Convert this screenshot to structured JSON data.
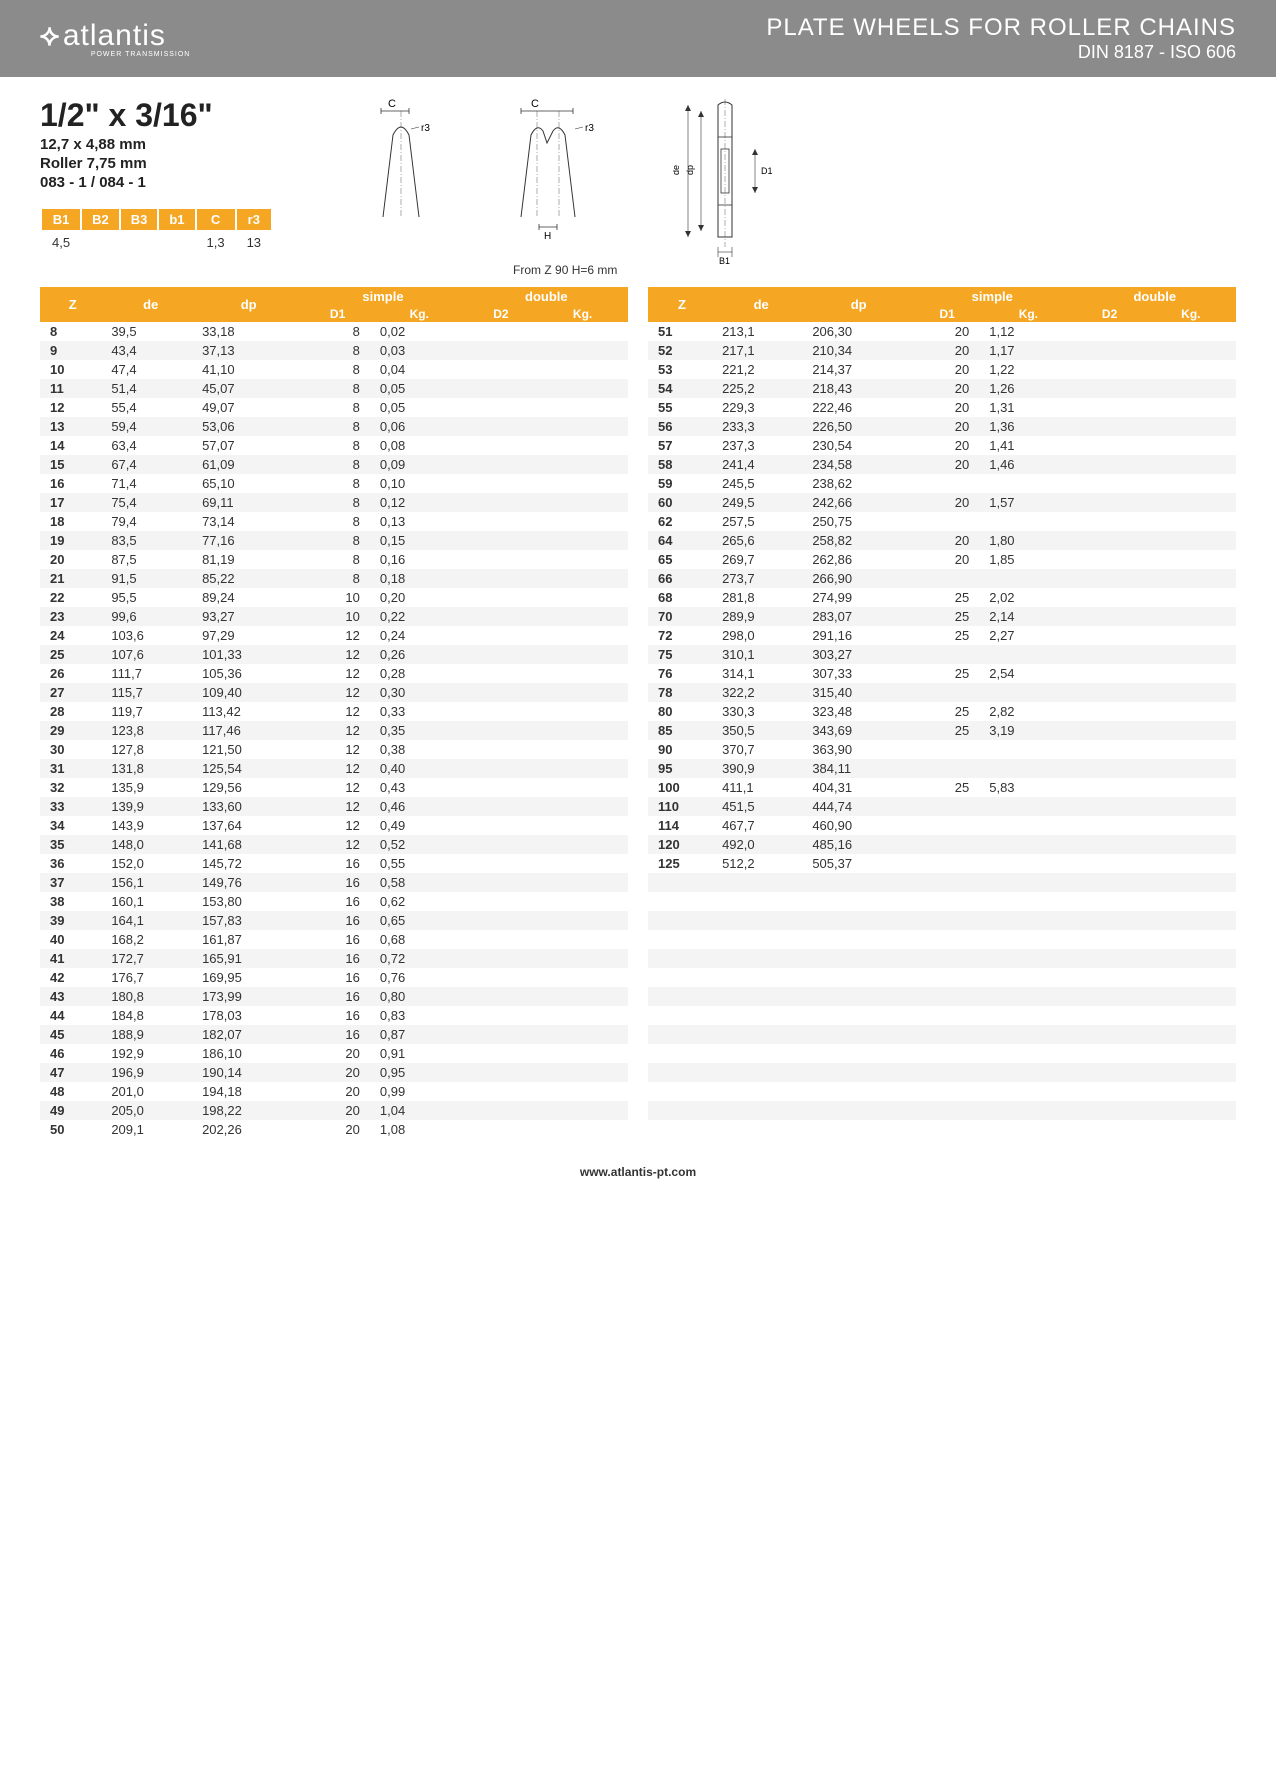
{
  "header": {
    "logo_text": "atlantis",
    "logo_sub": "POWER TRANSMISSION",
    "title_main": "PLATE WHEELS FOR ROLLER CHAINS",
    "title_sub": "DIN 8187 - ISO 606"
  },
  "spec": {
    "size": "1/2\" x 3/16\"",
    "mm": "12,7 x 4,88 mm",
    "roller": "Roller 7,75 mm",
    "code": "083 - 1 / 084 - 1"
  },
  "note": "From Z 90 H=6 mm",
  "small_table": {
    "headers": [
      "B1",
      "B2",
      "B3",
      "b1",
      "C",
      "r3"
    ],
    "values": [
      "4,5",
      "",
      "",
      "",
      "1,3",
      "13"
    ]
  },
  "diagram_labels": {
    "C": "C",
    "r3": "r3",
    "H": "H",
    "de": "de",
    "dp": "dp",
    "D1": "D1",
    "B1": "B1"
  },
  "table_headers": {
    "Z": "Z",
    "de": "de",
    "dp": "dp",
    "simple": "simple",
    "double": "double",
    "D1": "D1",
    "Kg": "Kg.",
    "D2": "D2",
    "Kg2": "Kg."
  },
  "colors": {
    "header_bg": "#8b8b8b",
    "accent": "#f5a623",
    "row_alt": "#f4f4f4",
    "text": "#333333"
  },
  "left_rows": [
    {
      "z": "8",
      "de": "39,5",
      "dp": "33,18",
      "d1": "8",
      "kg": "0,02"
    },
    {
      "z": "9",
      "de": "43,4",
      "dp": "37,13",
      "d1": "8",
      "kg": "0,03"
    },
    {
      "z": "10",
      "de": "47,4",
      "dp": "41,10",
      "d1": "8",
      "kg": "0,04"
    },
    {
      "z": "11",
      "de": "51,4",
      "dp": "45,07",
      "d1": "8",
      "kg": "0,05"
    },
    {
      "z": "12",
      "de": "55,4",
      "dp": "49,07",
      "d1": "8",
      "kg": "0,05"
    },
    {
      "z": "13",
      "de": "59,4",
      "dp": "53,06",
      "d1": "8",
      "kg": "0,06"
    },
    {
      "z": "14",
      "de": "63,4",
      "dp": "57,07",
      "d1": "8",
      "kg": "0,08"
    },
    {
      "z": "15",
      "de": "67,4",
      "dp": "61,09",
      "d1": "8",
      "kg": "0,09"
    },
    {
      "z": "16",
      "de": "71,4",
      "dp": "65,10",
      "d1": "8",
      "kg": "0,10"
    },
    {
      "z": "17",
      "de": "75,4",
      "dp": "69,11",
      "d1": "8",
      "kg": "0,12"
    },
    {
      "z": "18",
      "de": "79,4",
      "dp": "73,14",
      "d1": "8",
      "kg": "0,13"
    },
    {
      "z": "19",
      "de": "83,5",
      "dp": "77,16",
      "d1": "8",
      "kg": "0,15"
    },
    {
      "z": "20",
      "de": "87,5",
      "dp": "81,19",
      "d1": "8",
      "kg": "0,16"
    },
    {
      "z": "21",
      "de": "91,5",
      "dp": "85,22",
      "d1": "8",
      "kg": "0,18"
    },
    {
      "z": "22",
      "de": "95,5",
      "dp": "89,24",
      "d1": "10",
      "kg": "0,20"
    },
    {
      "z": "23",
      "de": "99,6",
      "dp": "93,27",
      "d1": "10",
      "kg": "0,22"
    },
    {
      "z": "24",
      "de": "103,6",
      "dp": "97,29",
      "d1": "12",
      "kg": "0,24"
    },
    {
      "z": "25",
      "de": "107,6",
      "dp": "101,33",
      "d1": "12",
      "kg": "0,26"
    },
    {
      "z": "26",
      "de": "111,7",
      "dp": "105,36",
      "d1": "12",
      "kg": "0,28"
    },
    {
      "z": "27",
      "de": "115,7",
      "dp": "109,40",
      "d1": "12",
      "kg": "0,30"
    },
    {
      "z": "28",
      "de": "119,7",
      "dp": "113,42",
      "d1": "12",
      "kg": "0,33"
    },
    {
      "z": "29",
      "de": "123,8",
      "dp": "117,46",
      "d1": "12",
      "kg": "0,35"
    },
    {
      "z": "30",
      "de": "127,8",
      "dp": "121,50",
      "d1": "12",
      "kg": "0,38"
    },
    {
      "z": "31",
      "de": "131,8",
      "dp": "125,54",
      "d1": "12",
      "kg": "0,40"
    },
    {
      "z": "32",
      "de": "135,9",
      "dp": "129,56",
      "d1": "12",
      "kg": "0,43"
    },
    {
      "z": "33",
      "de": "139,9",
      "dp": "133,60",
      "d1": "12",
      "kg": "0,46"
    },
    {
      "z": "34",
      "de": "143,9",
      "dp": "137,64",
      "d1": "12",
      "kg": "0,49"
    },
    {
      "z": "35",
      "de": "148,0",
      "dp": "141,68",
      "d1": "12",
      "kg": "0,52"
    },
    {
      "z": "36",
      "de": "152,0",
      "dp": "145,72",
      "d1": "16",
      "kg": "0,55"
    },
    {
      "z": "37",
      "de": "156,1",
      "dp": "149,76",
      "d1": "16",
      "kg": "0,58"
    },
    {
      "z": "38",
      "de": "160,1",
      "dp": "153,80",
      "d1": "16",
      "kg": "0,62"
    },
    {
      "z": "39",
      "de": "164,1",
      "dp": "157,83",
      "d1": "16",
      "kg": "0,65"
    },
    {
      "z": "40",
      "de": "168,2",
      "dp": "161,87",
      "d1": "16",
      "kg": "0,68"
    },
    {
      "z": "41",
      "de": "172,7",
      "dp": "165,91",
      "d1": "16",
      "kg": "0,72"
    },
    {
      "z": "42",
      "de": "176,7",
      "dp": "169,95",
      "d1": "16",
      "kg": "0,76"
    },
    {
      "z": "43",
      "de": "180,8",
      "dp": "173,99",
      "d1": "16",
      "kg": "0,80"
    },
    {
      "z": "44",
      "de": "184,8",
      "dp": "178,03",
      "d1": "16",
      "kg": "0,83"
    },
    {
      "z": "45",
      "de": "188,9",
      "dp": "182,07",
      "d1": "16",
      "kg": "0,87"
    },
    {
      "z": "46",
      "de": "192,9",
      "dp": "186,10",
      "d1": "20",
      "kg": "0,91"
    },
    {
      "z": "47",
      "de": "196,9",
      "dp": "190,14",
      "d1": "20",
      "kg": "0,95"
    },
    {
      "z": "48",
      "de": "201,0",
      "dp": "194,18",
      "d1": "20",
      "kg": "0,99"
    },
    {
      "z": "49",
      "de": "205,0",
      "dp": "198,22",
      "d1": "20",
      "kg": "1,04"
    },
    {
      "z": "50",
      "de": "209,1",
      "dp": "202,26",
      "d1": "20",
      "kg": "1,08"
    }
  ],
  "right_rows": [
    {
      "z": "51",
      "de": "213,1",
      "dp": "206,30",
      "d1": "20",
      "kg": "1,12"
    },
    {
      "z": "52",
      "de": "217,1",
      "dp": "210,34",
      "d1": "20",
      "kg": "1,17"
    },
    {
      "z": "53",
      "de": "221,2",
      "dp": "214,37",
      "d1": "20",
      "kg": "1,22"
    },
    {
      "z": "54",
      "de": "225,2",
      "dp": "218,43",
      "d1": "20",
      "kg": "1,26"
    },
    {
      "z": "55",
      "de": "229,3",
      "dp": "222,46",
      "d1": "20",
      "kg": "1,31"
    },
    {
      "z": "56",
      "de": "233,3",
      "dp": "226,50",
      "d1": "20",
      "kg": "1,36"
    },
    {
      "z": "57",
      "de": "237,3",
      "dp": "230,54",
      "d1": "20",
      "kg": "1,41"
    },
    {
      "z": "58",
      "de": "241,4",
      "dp": "234,58",
      "d1": "20",
      "kg": "1,46"
    },
    {
      "z": "59",
      "de": "245,5",
      "dp": "238,62",
      "d1": "",
      "kg": ""
    },
    {
      "z": "60",
      "de": "249,5",
      "dp": "242,66",
      "d1": "20",
      "kg": "1,57"
    },
    {
      "z": "62",
      "de": "257,5",
      "dp": "250,75",
      "d1": "",
      "kg": ""
    },
    {
      "z": "64",
      "de": "265,6",
      "dp": "258,82",
      "d1": "20",
      "kg": "1,80"
    },
    {
      "z": "65",
      "de": "269,7",
      "dp": "262,86",
      "d1": "20",
      "kg": "1,85"
    },
    {
      "z": "66",
      "de": "273,7",
      "dp": "266,90",
      "d1": "",
      "kg": ""
    },
    {
      "z": "68",
      "de": "281,8",
      "dp": "274,99",
      "d1": "25",
      "kg": "2,02"
    },
    {
      "z": "70",
      "de": "289,9",
      "dp": "283,07",
      "d1": "25",
      "kg": "2,14"
    },
    {
      "z": "72",
      "de": "298,0",
      "dp": "291,16",
      "d1": "25",
      "kg": "2,27"
    },
    {
      "z": "75",
      "de": "310,1",
      "dp": "303,27",
      "d1": "",
      "kg": ""
    },
    {
      "z": "76",
      "de": "314,1",
      "dp": "307,33",
      "d1": "25",
      "kg": "2,54"
    },
    {
      "z": "78",
      "de": "322,2",
      "dp": "315,40",
      "d1": "",
      "kg": ""
    },
    {
      "z": "80",
      "de": "330,3",
      "dp": "323,48",
      "d1": "25",
      "kg": "2,82"
    },
    {
      "z": "85",
      "de": "350,5",
      "dp": "343,69",
      "d1": "25",
      "kg": "3,19"
    },
    {
      "z": "90",
      "de": "370,7",
      "dp": "363,90",
      "d1": "",
      "kg": ""
    },
    {
      "z": "95",
      "de": "390,9",
      "dp": "384,11",
      "d1": "",
      "kg": ""
    },
    {
      "z": "100",
      "de": "411,1",
      "dp": "404,31",
      "d1": "25",
      "kg": "5,83"
    },
    {
      "z": "110",
      "de": "451,5",
      "dp": "444,74",
      "d1": "",
      "kg": ""
    },
    {
      "z": "114",
      "de": "467,7",
      "dp": "460,90",
      "d1": "",
      "kg": ""
    },
    {
      "z": "120",
      "de": "492,0",
      "dp": "485,16",
      "d1": "",
      "kg": ""
    },
    {
      "z": "125",
      "de": "512,2",
      "dp": "505,37",
      "d1": "",
      "kg": ""
    }
  ],
  "right_padding_rows": 14,
  "footer": "www.atlantis-pt.com"
}
